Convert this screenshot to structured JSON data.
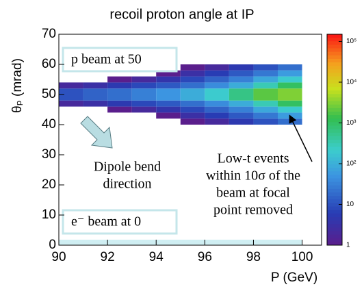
{
  "chart_data": {
    "type": "heatmap",
    "title": "recoil proton angle at IP",
    "xlabel": "P (GeV)",
    "ylabel": "θₚ (mrad)",
    "xbins": [
      90,
      91,
      92,
      93,
      94,
      95,
      96,
      97,
      98,
      99,
      100
    ],
    "ybins": [
      40,
      42,
      44,
      46,
      48,
      50,
      52,
      54,
      56,
      58,
      60
    ],
    "z": [
      [
        0,
        0,
        0,
        0,
        0,
        1,
        2,
        5,
        10,
        20
      ],
      [
        0,
        0,
        0,
        0,
        1,
        3,
        6,
        12,
        25,
        60
      ],
      [
        0,
        0,
        1,
        2,
        4,
        8,
        15,
        30,
        80,
        200
      ],
      [
        2,
        3,
        5,
        8,
        12,
        20,
        40,
        90,
        300,
        1000
      ],
      [
        10,
        15,
        20,
        30,
        50,
        90,
        200,
        600,
        2000,
        3000
      ],
      [
        10,
        15,
        20,
        30,
        50,
        90,
        200,
        600,
        2000,
        3000
      ],
      [
        2,
        3,
        5,
        8,
        12,
        20,
        40,
        90,
        300,
        1000
      ],
      [
        0,
        0,
        1,
        2,
        4,
        8,
        15,
        30,
        80,
        200
      ],
      [
        0,
        0,
        0,
        0,
        1,
        3,
        6,
        12,
        25,
        60
      ],
      [
        0,
        0,
        0,
        0,
        0,
        1,
        2,
        5,
        10,
        20
      ]
    ],
    "xlim": [
      90,
      100.8
    ],
    "ylim": [
      0,
      70
    ],
    "xticks": [
      90,
      92,
      94,
      96,
      98,
      100
    ],
    "yticks": [
      0,
      10,
      20,
      30,
      40,
      50,
      60,
      70
    ],
    "zscale": "log",
    "zlim": [
      1,
      150000
    ],
    "zticks": [
      1,
      10,
      {
        "value": 100,
        "label": "10²"
      },
      {
        "value": 1000,
        "label": "10³"
      },
      {
        "value": 10000,
        "label": "10⁴"
      },
      {
        "value": 100000,
        "label": "10⁵"
      }
    ],
    "annotations": {
      "p_beam": "p beam at 50",
      "e_beam": "e⁻ beam at 0",
      "dipole": [
        "Dipole bend",
        "direction"
      ],
      "low_t": [
        "Low-t events",
        "within 10σ of the",
        "beam at focal",
        "point removed"
      ]
    }
  }
}
